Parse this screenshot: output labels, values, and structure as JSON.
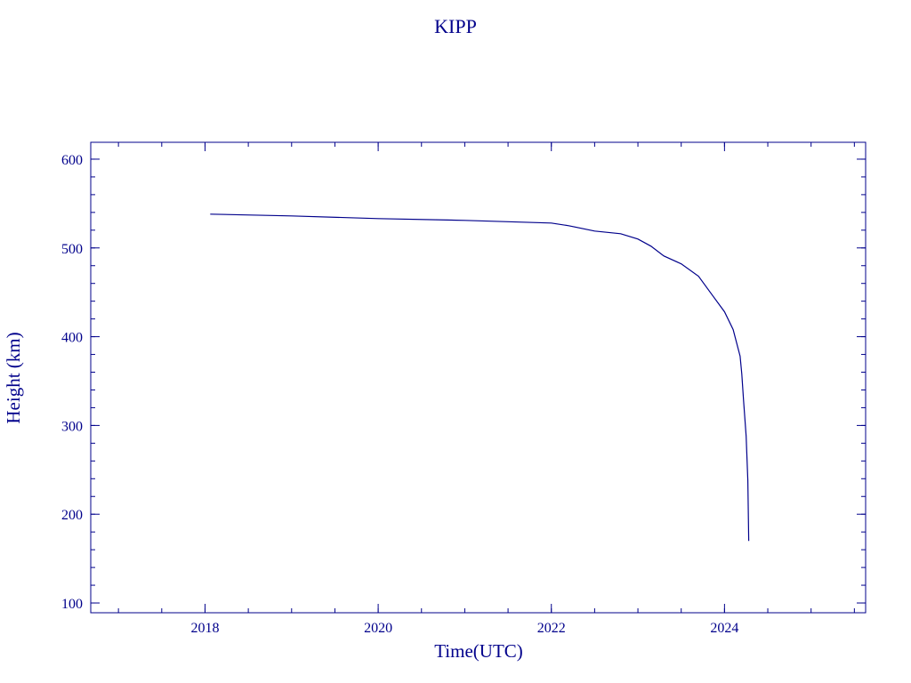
{
  "chart_data": {
    "type": "line",
    "title": "KIPP",
    "xlabel": "Time(UTC)",
    "ylabel": "Height (km)",
    "xlim": [
      2016.68,
      2025.63
    ],
    "ylim": [
      89,
      619
    ],
    "x_ticks": [
      2018,
      2020,
      2022,
      2024
    ],
    "x_tick_labels": [
      "2018",
      "2020",
      "2022",
      "2024"
    ],
    "x_minor_step": 0.5,
    "y_ticks": [
      100,
      200,
      300,
      400,
      500,
      600
    ],
    "y_tick_labels": [
      "100",
      "200",
      "300",
      "400",
      "500",
      "600"
    ],
    "y_minor_step": 20,
    "grid": false,
    "color": "#00008b",
    "series": [
      {
        "x": [
          2018.06,
          2019.0,
          2020.0,
          2021.0,
          2022.0,
          2022.2,
          2022.5,
          2022.8,
          2023.0,
          2023.15,
          2023.3,
          2023.5,
          2023.7,
          2023.85,
          2024.0,
          2024.1,
          2024.18,
          2024.2,
          2024.22,
          2024.25,
          2024.27,
          2024.28
        ],
        "y": [
          538,
          536,
          533,
          531,
          528,
          525,
          519,
          516,
          510,
          502,
          491,
          482,
          468,
          448,
          428,
          408,
          378,
          358,
          328,
          288,
          238,
          170
        ]
      }
    ]
  }
}
